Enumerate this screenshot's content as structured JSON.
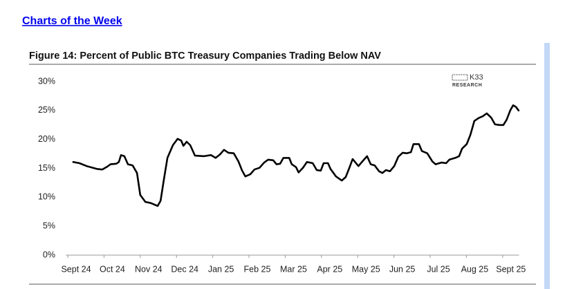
{
  "header": {
    "link": "Charts of the Week"
  },
  "logo": {
    "name": "K33",
    "sub": "RESEARCH"
  },
  "chart_data": {
    "type": "line",
    "title": "Figure 14: Percent of Public BTC Treasury Companies Trading Below NAV",
    "x": [
      0.15,
      0.32,
      0.52,
      0.8,
      0.95,
      1.09,
      1.18,
      1.34,
      1.41,
      1.47,
      1.56,
      1.66,
      1.79,
      1.91,
      2.0,
      2.14,
      2.29,
      2.48,
      2.56,
      2.65,
      2.75,
      2.9,
      3.03,
      3.13,
      3.19,
      3.28,
      3.38,
      3.51,
      3.76,
      3.95,
      4.08,
      4.2,
      4.31,
      4.43,
      4.58,
      4.71,
      4.81,
      4.9,
      5.04,
      5.15,
      5.29,
      5.42,
      5.53,
      5.67,
      5.76,
      5.86,
      5.95,
      6.11,
      6.18,
      6.3,
      6.37,
      6.49,
      6.6,
      6.76,
      6.87,
      6.98,
      7.06,
      7.18,
      7.25,
      7.4,
      7.56,
      7.67,
      7.77,
      7.86,
      8.02,
      8.13,
      8.26,
      8.36,
      8.47,
      8.59,
      8.68,
      8.78,
      8.89,
      9.01,
      9.12,
      9.24,
      9.35,
      9.47,
      9.54,
      9.69,
      9.77,
      9.92,
      10.06,
      10.15,
      10.31,
      10.44,
      10.53,
      10.69,
      10.8,
      10.88,
      11.01,
      11.11,
      11.22,
      11.34,
      11.45,
      11.56,
      11.68,
      11.79,
      11.91,
      12.02,
      12.11,
      12.21,
      12.29,
      12.37,
      12.44
    ],
    "series": [
      {
        "color": "#000000",
        "values": [
          16.1,
          15.9,
          15.4,
          14.9,
          14.8,
          15.3,
          15.7,
          15.8,
          16.1,
          17.3,
          17.1,
          15.7,
          15.5,
          14.2,
          10.4,
          9.2,
          9.0,
          8.5,
          9.4,
          13.0,
          16.8,
          19.0,
          20.1,
          19.8,
          18.9,
          19.6,
          19.0,
          17.2,
          17.1,
          17.3,
          16.8,
          17.4,
          18.2,
          17.7,
          17.6,
          16.2,
          14.6,
          13.6,
          14.0,
          14.8,
          15.1,
          16.0,
          16.5,
          16.4,
          15.7,
          15.8,
          16.8,
          16.8,
          15.7,
          15.2,
          14.3,
          15.1,
          16.1,
          15.9,
          14.7,
          14.6,
          15.9,
          15.9,
          14.9,
          13.6,
          12.9,
          13.5,
          15.1,
          16.6,
          15.4,
          16.2,
          17.1,
          15.7,
          15.5,
          14.5,
          14.2,
          14.7,
          14.5,
          15.4,
          17.0,
          17.7,
          17.6,
          17.8,
          19.2,
          19.2,
          18.0,
          17.6,
          16.2,
          15.7,
          16.0,
          15.9,
          16.5,
          16.8,
          17.1,
          18.4,
          19.2,
          20.8,
          23.2,
          23.7,
          24.0,
          24.5,
          23.8,
          22.6,
          22.5,
          22.5,
          23.4,
          25.0,
          25.9,
          25.6,
          25.0
        ]
      }
    ],
    "xlim": [
      -0.05,
      12.45
    ],
    "xticks": [
      {
        "value": 0,
        "label": "Sept 24"
      },
      {
        "value": 1,
        "label": "Oct 24"
      },
      {
        "value": 2,
        "label": "Nov 24"
      },
      {
        "value": 3,
        "label": "Dec 24"
      },
      {
        "value": 4,
        "label": "Jan 25"
      },
      {
        "value": 5,
        "label": "Feb 25"
      },
      {
        "value": 6,
        "label": "Mar 25"
      },
      {
        "value": 7,
        "label": "Apr 25"
      },
      {
        "value": 8,
        "label": "May 25"
      },
      {
        "value": 9,
        "label": "Jun 25"
      },
      {
        "value": 10,
        "label": "Jul 25"
      },
      {
        "value": 11,
        "label": "Aug 25"
      },
      {
        "value": 12,
        "label": "Sept 25"
      }
    ],
    "ylim": [
      0,
      30
    ],
    "yticks": [
      {
        "value": 0,
        "label": "0%"
      },
      {
        "value": 5,
        "label": "5%"
      },
      {
        "value": 10,
        "label": "10%"
      },
      {
        "value": 15,
        "label": "15%"
      },
      {
        "value": 20,
        "label": "20%"
      },
      {
        "value": 25,
        "label": "25%"
      },
      {
        "value": 30,
        "label": "30%"
      }
    ],
    "grid": false
  }
}
